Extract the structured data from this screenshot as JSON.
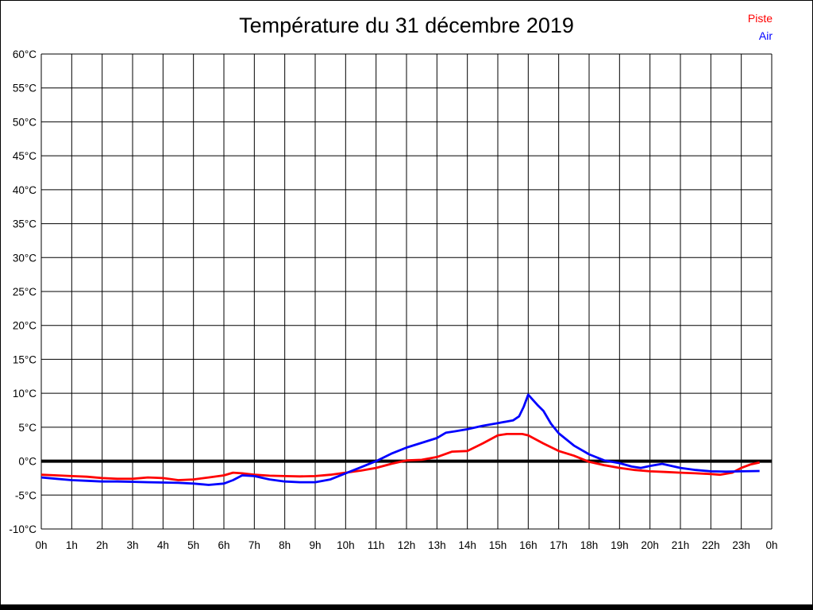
{
  "window": {
    "background": "#ffffff",
    "border_color": "#000000",
    "bottom_bar_color": "#000000"
  },
  "chart_data": {
    "type": "line",
    "title": "Température du 31 décembre 2019",
    "xlabel": "",
    "ylabel": "",
    "x_unit": "hours",
    "y_unit": "°C",
    "xlim": [
      0,
      24
    ],
    "ylim": [
      -10,
      60
    ],
    "grid": true,
    "grid_color": "#000000",
    "zero_line": true,
    "zero_line_color": "#000000",
    "x_tick_labels": [
      "0h",
      "1h",
      "2h",
      "3h",
      "4h",
      "5h",
      "6h",
      "7h",
      "8h",
      "9h",
      "10h",
      "11h",
      "12h",
      "13h",
      "14h",
      "15h",
      "16h",
      "17h",
      "18h",
      "19h",
      "20h",
      "21h",
      "22h",
      "23h",
      "0h"
    ],
    "y_tick_values": [
      60,
      55,
      50,
      45,
      40,
      35,
      30,
      25,
      20,
      15,
      10,
      5,
      0,
      -5,
      -10
    ],
    "y_tick_labels": [
      "60°C",
      "55°C",
      "50°C",
      "45°C",
      "40°C",
      "35°C",
      "30°C",
      "25°C",
      "20°C",
      "15°C",
      "10°C",
      "5°C",
      "0°C",
      "-5°C",
      "-10°C"
    ],
    "legend_position": "top-right",
    "legend": [
      {
        "label": "Piste",
        "color": "#ff0000"
      },
      {
        "label": "Air",
        "color": "#0000ff"
      }
    ],
    "series": [
      {
        "name": "Piste",
        "color": "#ff0000",
        "points": [
          [
            0,
            -2.0
          ],
          [
            0.5,
            -2.1
          ],
          [
            1,
            -2.2
          ],
          [
            1.5,
            -2.3
          ],
          [
            2,
            -2.5
          ],
          [
            2.5,
            -2.6
          ],
          [
            3,
            -2.6
          ],
          [
            3.5,
            -2.4
          ],
          [
            4,
            -2.5
          ],
          [
            4.5,
            -2.8
          ],
          [
            5,
            -2.7
          ],
          [
            5.5,
            -2.4
          ],
          [
            6,
            -2.1
          ],
          [
            6.3,
            -1.7
          ],
          [
            6.6,
            -1.8
          ],
          [
            7,
            -2.0
          ],
          [
            7.5,
            -2.15
          ],
          [
            8,
            -2.2
          ],
          [
            8.5,
            -2.25
          ],
          [
            9,
            -2.2
          ],
          [
            9.5,
            -2.0
          ],
          [
            10,
            -1.7
          ],
          [
            10.5,
            -1.4
          ],
          [
            11,
            -1.0
          ],
          [
            11.5,
            -0.4
          ],
          [
            12,
            0.1
          ],
          [
            12.5,
            0.2
          ],
          [
            13,
            0.6
          ],
          [
            13.5,
            1.4
          ],
          [
            14,
            1.5
          ],
          [
            14.5,
            2.6
          ],
          [
            15,
            3.8
          ],
          [
            15.3,
            4.0
          ],
          [
            15.8,
            4.0
          ],
          [
            16,
            3.8
          ],
          [
            16.5,
            2.6
          ],
          [
            17,
            1.5
          ],
          [
            17.5,
            0.8
          ],
          [
            18,
            -0.1
          ],
          [
            18.5,
            -0.6
          ],
          [
            19,
            -1.0
          ],
          [
            19.5,
            -1.3
          ],
          [
            20,
            -1.5
          ],
          [
            20.5,
            -1.6
          ],
          [
            21,
            -1.7
          ],
          [
            21.5,
            -1.8
          ],
          [
            22,
            -1.9
          ],
          [
            22.3,
            -2.0
          ],
          [
            22.7,
            -1.7
          ],
          [
            23,
            -1.0
          ],
          [
            23.3,
            -0.5
          ],
          [
            23.6,
            -0.2
          ]
        ]
      },
      {
        "name": "Air",
        "color": "#0000ff",
        "points": [
          [
            0,
            -2.4
          ],
          [
            0.5,
            -2.6
          ],
          [
            1,
            -2.8
          ],
          [
            1.5,
            -2.9
          ],
          [
            2,
            -3.0
          ],
          [
            2.5,
            -3.0
          ],
          [
            3,
            -3.05
          ],
          [
            3.5,
            -3.1
          ],
          [
            4,
            -3.15
          ],
          [
            4.5,
            -3.2
          ],
          [
            5,
            -3.3
          ],
          [
            5.5,
            -3.5
          ],
          [
            6,
            -3.3
          ],
          [
            6.3,
            -2.8
          ],
          [
            6.6,
            -2.1
          ],
          [
            7,
            -2.2
          ],
          [
            7.5,
            -2.7
          ],
          [
            8,
            -3.0
          ],
          [
            8.5,
            -3.1
          ],
          [
            9,
            -3.1
          ],
          [
            9.5,
            -2.7
          ],
          [
            10,
            -1.8
          ],
          [
            10.5,
            -0.9
          ],
          [
            11,
            0.0
          ],
          [
            11.5,
            1.1
          ],
          [
            12,
            2.0
          ],
          [
            12.5,
            2.7
          ],
          [
            13,
            3.4
          ],
          [
            13.3,
            4.2
          ],
          [
            13.6,
            4.4
          ],
          [
            14,
            4.7
          ],
          [
            14.5,
            5.2
          ],
          [
            15,
            5.6
          ],
          [
            15.5,
            6.0
          ],
          [
            15.7,
            6.6
          ],
          [
            15.85,
            8.0
          ],
          [
            16,
            9.8
          ],
          [
            16.3,
            8.3
          ],
          [
            16.5,
            7.4
          ],
          [
            16.75,
            5.5
          ],
          [
            17,
            4.1
          ],
          [
            17.5,
            2.3
          ],
          [
            18,
            1.0
          ],
          [
            18.5,
            0.1
          ],
          [
            19,
            -0.3
          ],
          [
            19.4,
            -0.8
          ],
          [
            19.7,
            -1.0
          ],
          [
            20,
            -0.7
          ],
          [
            20.4,
            -0.4
          ],
          [
            21,
            -1.0
          ],
          [
            21.5,
            -1.3
          ],
          [
            22,
            -1.5
          ],
          [
            22.5,
            -1.55
          ],
          [
            23,
            -1.5
          ],
          [
            23.6,
            -1.45
          ]
        ]
      }
    ]
  }
}
